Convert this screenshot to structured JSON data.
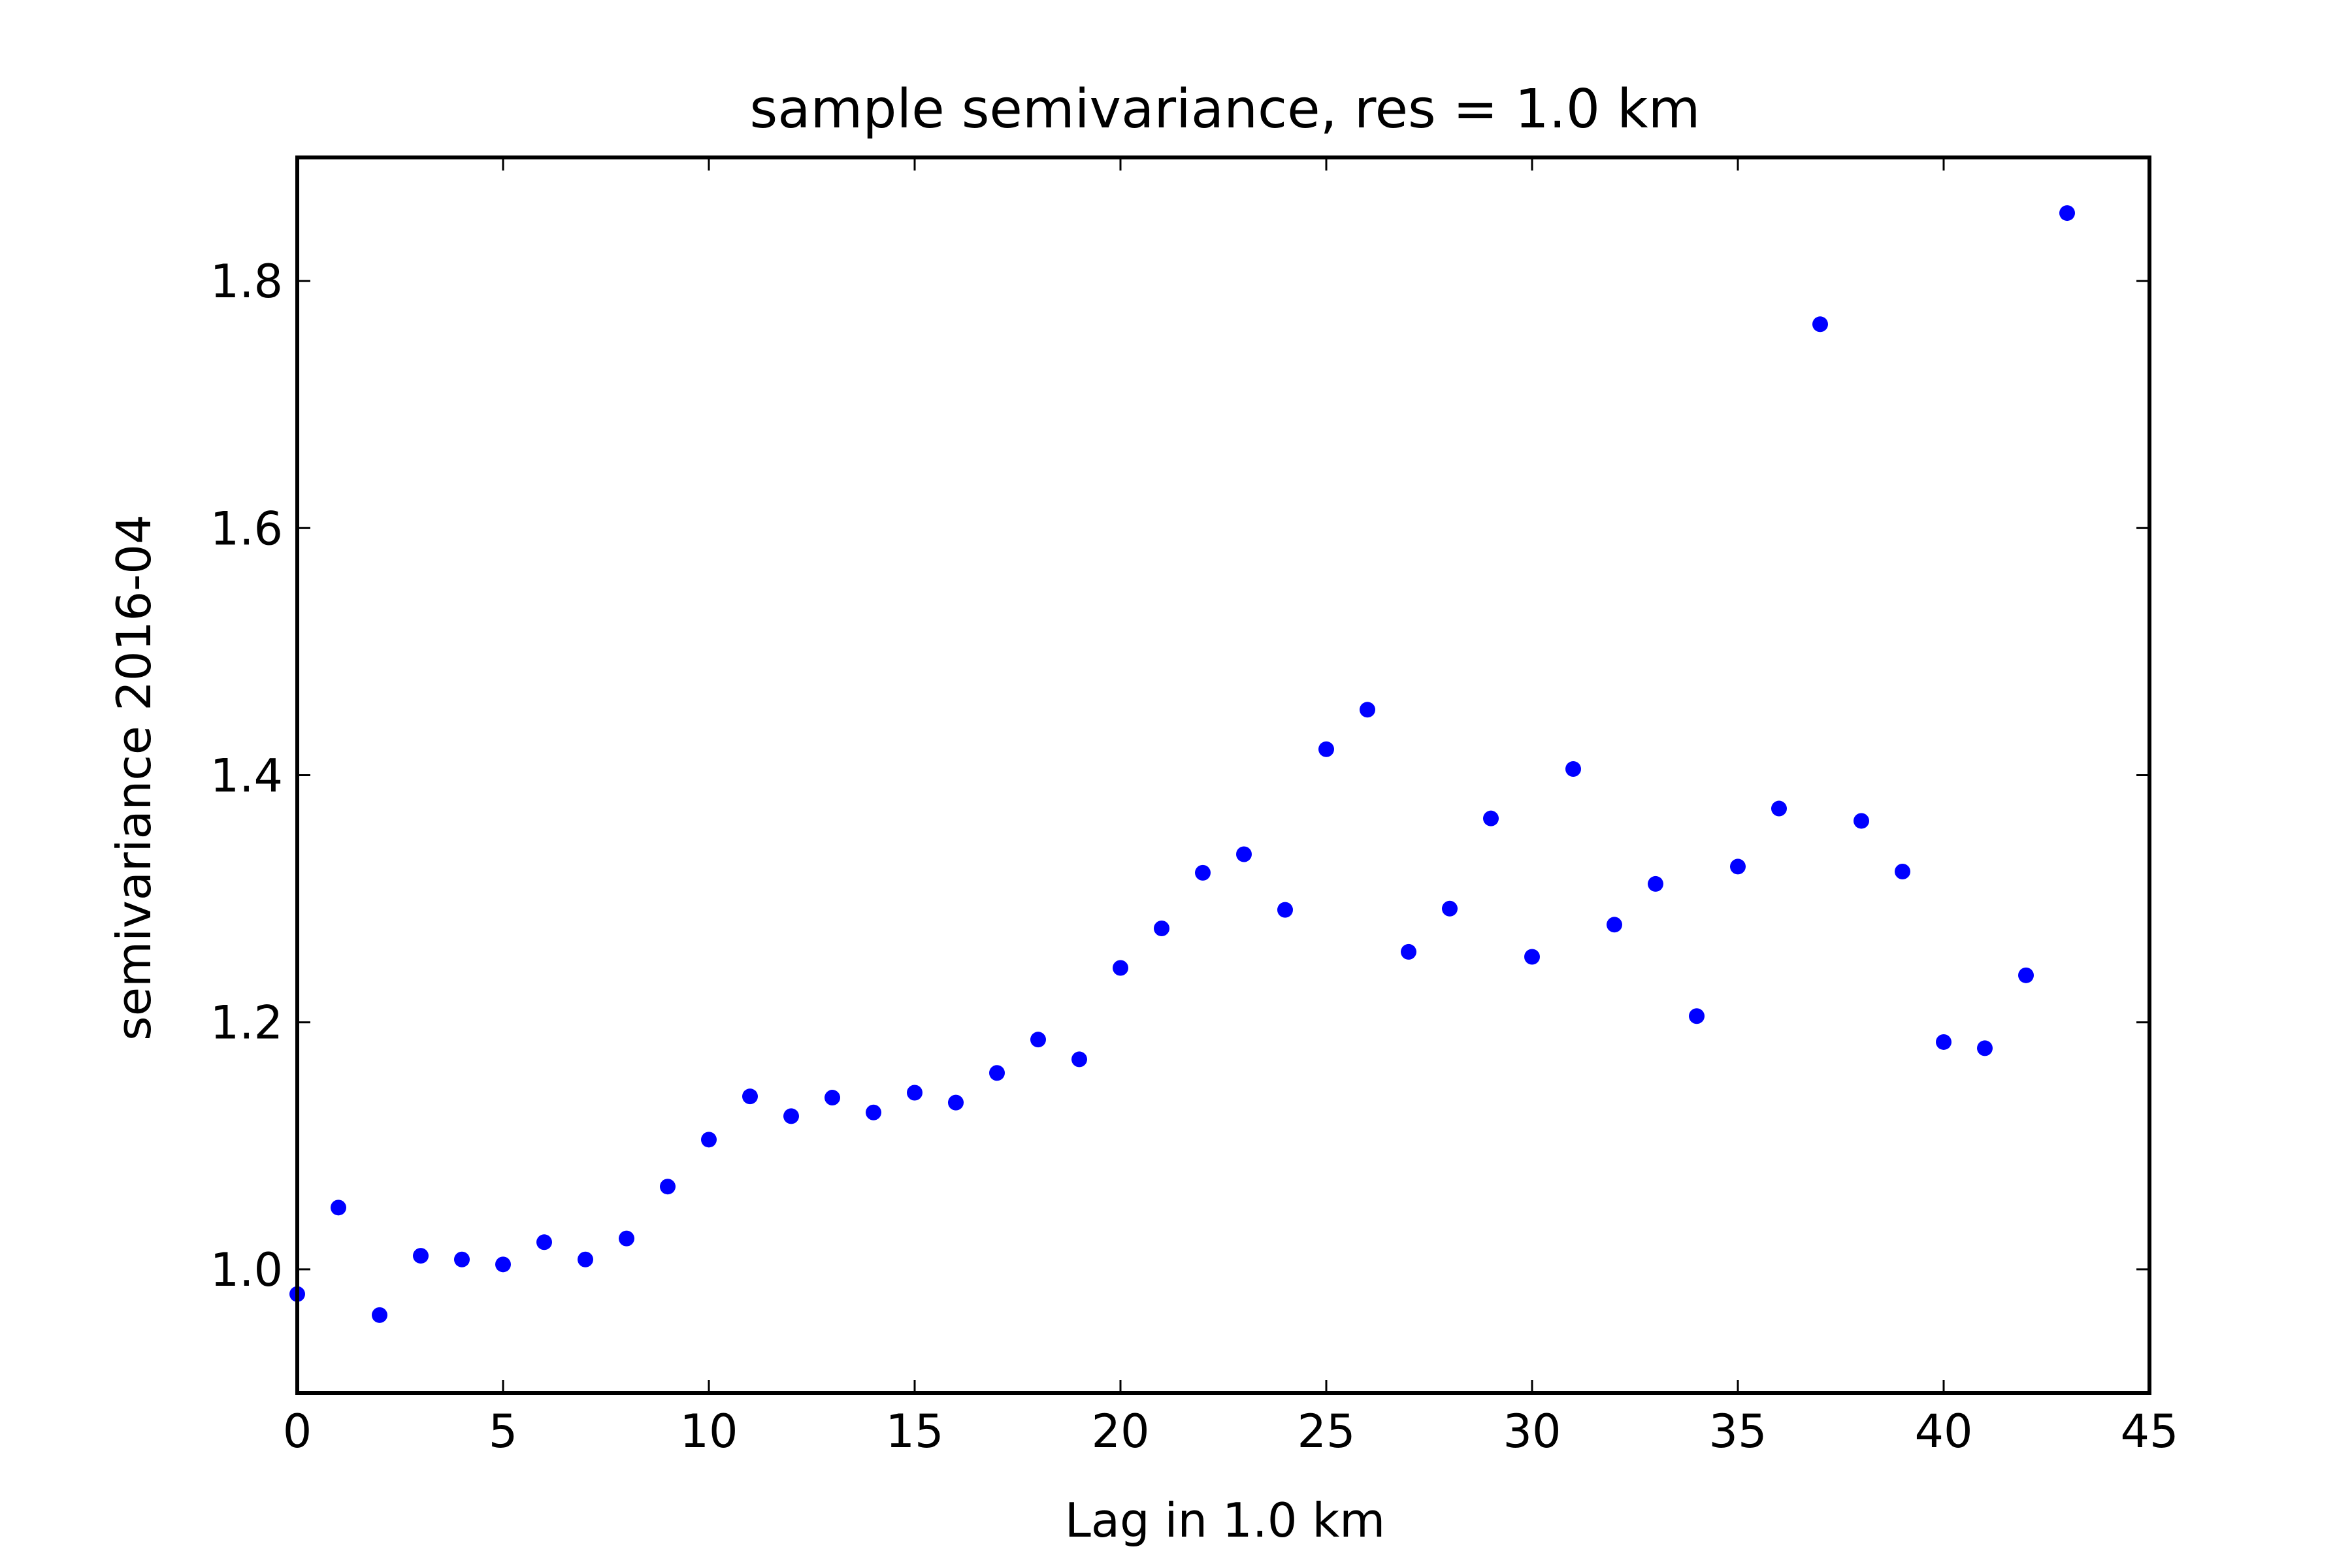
{
  "chart_data": {
    "type": "scatter",
    "title": "sample semivariance, res = 1.0 km",
    "xlabel": "Lag in 1.0 km",
    "ylabel": "semivariance 2016-04",
    "xlim": [
      0,
      45
    ],
    "ylim": [
      0.9,
      1.9
    ],
    "xticks": [
      0,
      5,
      10,
      15,
      20,
      25,
      30,
      35,
      40,
      45
    ],
    "xtick_labels": [
      "0",
      "5",
      "10",
      "15",
      "20",
      "25",
      "30",
      "35",
      "40",
      "45"
    ],
    "yticks": [
      1.0,
      1.2,
      1.4,
      1.6,
      1.8
    ],
    "ytick_labels": [
      "1.0",
      "1.2",
      "1.4",
      "1.6",
      "1.8"
    ],
    "grid": false,
    "marker_color": "#0000ff",
    "series": [
      {
        "x": [
          0,
          1,
          2,
          3,
          4,
          5,
          6,
          7,
          8,
          9,
          10,
          11,
          12,
          13,
          14,
          15,
          16,
          17,
          18,
          19,
          20,
          21,
          22,
          23,
          24,
          25,
          26,
          27,
          28,
          29,
          30,
          31,
          32,
          33,
          34,
          35,
          36,
          37,
          38,
          39,
          40,
          41,
          42,
          43
        ],
        "y": [
          0.98,
          1.05,
          0.963,
          1.011,
          1.008,
          1.004,
          1.022,
          1.008,
          1.025,
          1.067,
          1.105,
          1.14,
          1.124,
          1.139,
          1.127,
          1.143,
          1.135,
          1.159,
          1.186,
          1.17,
          1.244,
          1.276,
          1.321,
          1.336,
          1.291,
          1.421,
          1.453,
          1.257,
          1.292,
          1.365,
          1.253,
          1.405,
          1.279,
          1.312,
          1.205,
          1.326,
          1.373,
          1.765,
          1.363,
          1.322,
          1.184,
          1.179,
          1.238,
          1.855
        ]
      }
    ]
  }
}
